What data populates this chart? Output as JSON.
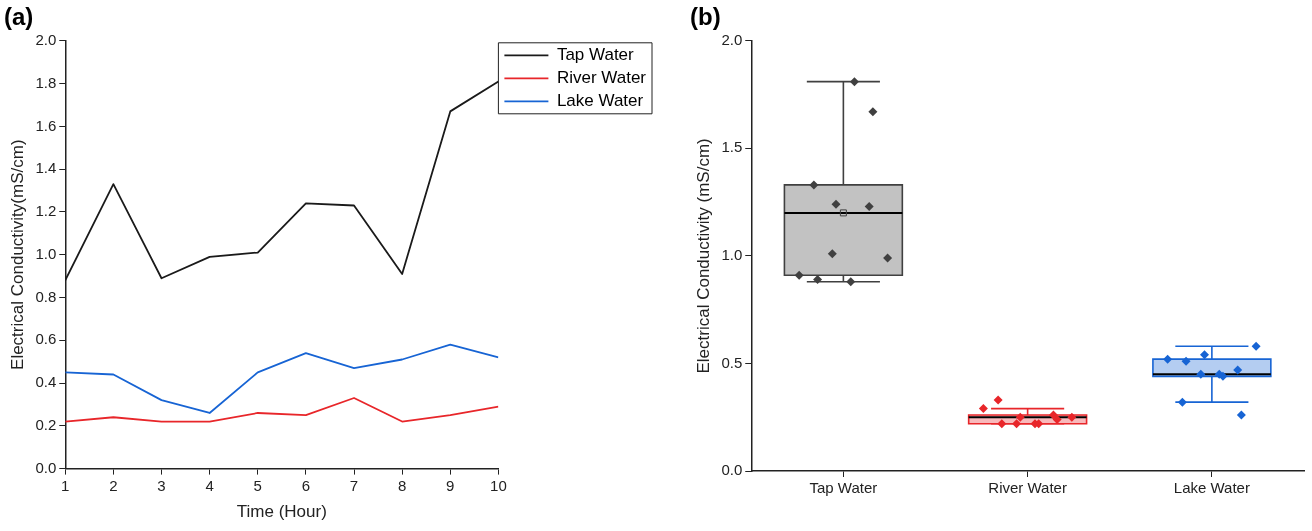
{
  "chart_data": [
    {
      "type": "line",
      "title": "(a)",
      "xlabel": "Time (Hour)",
      "ylabel": "Electrical Conductivity(mS/cm)",
      "x": [
        1,
        2,
        3,
        4,
        5,
        6,
        7,
        8,
        9,
        10
      ],
      "xlim": [
        1,
        10
      ],
      "xticks": [
        1,
        2,
        3,
        4,
        5,
        6,
        7,
        8,
        9,
        10
      ],
      "ylim": [
        0,
        2
      ],
      "yticks": [
        {
          "value": 0,
          "label": "0.0"
        },
        0.2,
        0.4,
        0.6,
        0.8,
        {
          "value": 1,
          "label": "1.0"
        },
        1.2,
        1.4,
        1.6,
        1.8,
        {
          "value": 2,
          "label": "2.0"
        }
      ],
      "grid": false,
      "legend": "top right",
      "marker": "none",
      "line_style": "solid",
      "series": [
        {
          "name": "Tap Water",
          "color": "#1a1a1a",
          "values": [
            0.88,
            1.33,
            0.89,
            0.99,
            1.01,
            1.24,
            1.23,
            0.91,
            1.67,
            1.81
          ]
        },
        {
          "name": "River Water",
          "color": "#e8262a",
          "values": [
            0.22,
            0.24,
            0.22,
            0.22,
            0.26,
            0.25,
            0.33,
            0.22,
            0.25,
            0.29
          ]
        },
        {
          "name": "Lake Water",
          "color": "#1764d4",
          "values": [
            0.45,
            0.44,
            0.32,
            0.26,
            0.45,
            0.54,
            0.47,
            0.51,
            0.58,
            0.52
          ]
        }
      ]
    },
    {
      "type": "box",
      "title": "(b)",
      "ylabel": "Electrical Conductivity (mS/cm)",
      "categories": [
        "Tap Water",
        "River Water",
        "Lake Water"
      ],
      "ylim": [
        0,
        2
      ],
      "yticks": [
        {
          "value": 0,
          "label": "0.0"
        },
        0.5,
        {
          "value": 1,
          "label": "1.0"
        },
        1.5,
        {
          "value": 2,
          "label": "2.0"
        }
      ],
      "grid": false,
      "legend": false,
      "marker": "diamond",
      "colors": [
        "#404040",
        "#e8262a",
        "#1764d4"
      ],
      "boxes": [
        {
          "low": 0.88,
          "q1": 0.91,
          "median": 1.2,
          "q3": 1.33,
          "high": 1.81,
          "mean": 1.2
        },
        {
          "low": 0.22,
          "q1": 0.22,
          "median": 0.25,
          "q3": 0.26,
          "high": 0.29
        },
        {
          "low": 0.32,
          "q1": 0.44,
          "median": 0.45,
          "q3": 0.52,
          "high": 0.58
        }
      ],
      "series": [
        {
          "type": "scatter",
          "color": "#404040",
          "x": [
            "Tap Water",
            "Tap Water",
            "Tap Water",
            "Tap Water",
            "Tap Water",
            "Tap Water",
            "Tap Water",
            "Tap Water",
            "Tap Water",
            "Tap Water"
          ],
          "values": [
            0.91,
            0.89,
            1.24,
            1.81,
            1.67,
            1.33,
            1.01,
            0.88,
            1.23,
            0.99
          ]
        },
        {
          "type": "scatter",
          "color": "#e8262a",
          "x": [
            "River Water",
            "River Water",
            "River Water",
            "River Water",
            "River Water",
            "River Water",
            "River Water",
            "River Water",
            "River Water",
            "River Water"
          ],
          "values": [
            0.29,
            0.22,
            0.25,
            0.22,
            0.24,
            0.33,
            0.22,
            0.22,
            0.26,
            0.25
          ]
        },
        {
          "type": "scatter",
          "color": "#1764d4",
          "x": [
            "Lake Water",
            "Lake Water",
            "Lake Water",
            "Lake Water",
            "Lake Water",
            "Lake Water",
            "Lake Water",
            "Lake Water",
            "Lake Water",
            "Lake Water"
          ],
          "values": [
            0.52,
            0.51,
            0.54,
            0.44,
            0.26,
            0.32,
            0.45,
            0.45,
            0.47,
            0.58
          ]
        }
      ]
    }
  ]
}
